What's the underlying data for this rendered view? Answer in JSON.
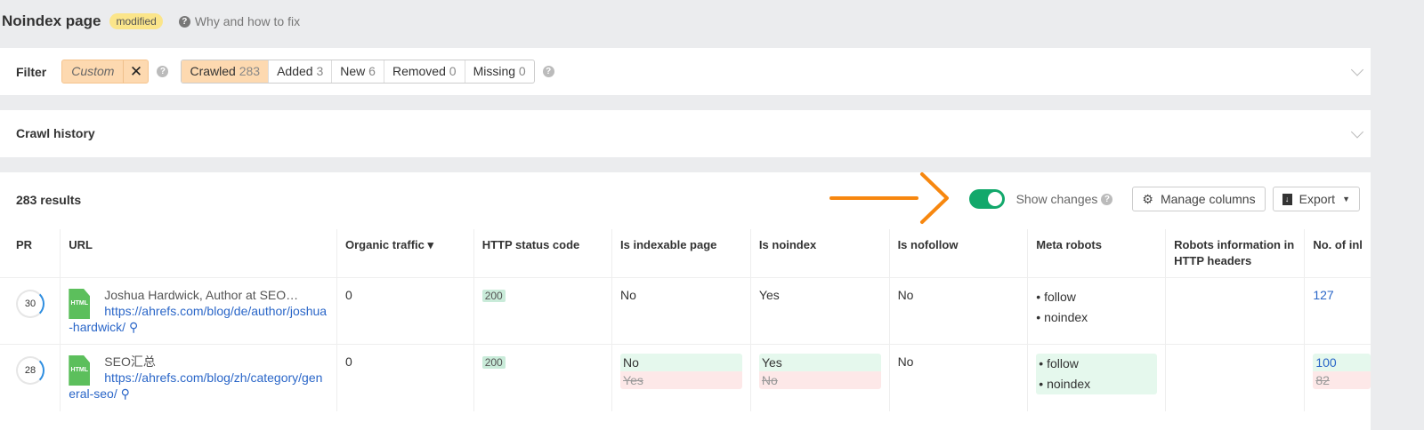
{
  "header": {
    "title": "Noindex page",
    "badge": "modified",
    "help": "Why and how to fix"
  },
  "filter": {
    "label": "Filter",
    "custom": "Custom",
    "tabs": [
      {
        "label": "Crawled",
        "count": "283"
      },
      {
        "label": "Added",
        "count": "3"
      },
      {
        "label": "New",
        "count": "6"
      },
      {
        "label": "Removed",
        "count": "0"
      },
      {
        "label": "Missing",
        "count": "0"
      }
    ]
  },
  "crawl_history": {
    "label": "Crawl history"
  },
  "results": {
    "count": "283 results",
    "show_changes": "Show changes",
    "show_changes_on": true,
    "manage_columns": "Manage columns",
    "export": "Export"
  },
  "colors": {
    "toggle": "#12a86b",
    "arrow": "#f7870f",
    "link": "#2a66c8"
  },
  "table": {
    "columns": [
      "PR",
      "URL",
      "Organic traffic ▾",
      "HTTP status code",
      "Is indexable page",
      "Is noindex",
      "Is nofollow",
      "Meta robots",
      "Robots information in HTTP headers",
      "No. of inl"
    ],
    "rows": [
      {
        "pr": "30",
        "title": "Joshua Hardwick, Author at SEO…",
        "url": "https://ahrefs.com/blog/de/author/joshua-hardwick/",
        "traffic": "0",
        "status": "200",
        "indexable": "No",
        "noindex": "Yes",
        "nofollow": "No",
        "meta": [
          "follow",
          "noindex"
        ],
        "inlinks": "127"
      },
      {
        "pr": "28",
        "title": "SEO汇总",
        "url": "https://ahrefs.com/blog/zh/category/general-seo/",
        "traffic": "0",
        "status": "200",
        "indexable": "No",
        "indexable_old": "Yes",
        "noindex": "Yes",
        "noindex_old": "No",
        "nofollow": "No",
        "meta": [
          "follow",
          "noindex"
        ],
        "inlinks": "100",
        "inlinks_old": "82"
      }
    ]
  }
}
